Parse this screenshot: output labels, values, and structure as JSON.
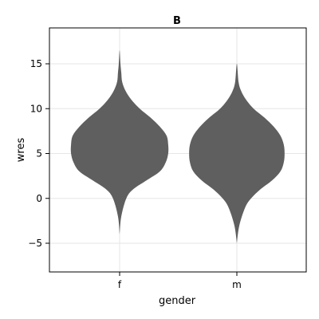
{
  "chart_data": {
    "type": "violin",
    "title": "B",
    "xlabel": "gender",
    "ylabel": "wres",
    "categories": [
      "f",
      "m"
    ],
    "ylim": [
      -8.2,
      19.0
    ],
    "yticks": [
      -5,
      0,
      5,
      10,
      15
    ],
    "ytick_labels": [
      "−5",
      "0",
      "5",
      "10",
      "15"
    ],
    "grid": true,
    "fill_color": "#5a5a5a",
    "violins": [
      {
        "category": "f",
        "min": -4.0,
        "max": 16.5,
        "density": [
          [
            -4.0,
            0.0
          ],
          [
            -2.0,
            0.02
          ],
          [
            0.0,
            0.08
          ],
          [
            1.0,
            0.16
          ],
          [
            2.0,
            0.32
          ],
          [
            3.0,
            0.48
          ],
          [
            4.0,
            0.55
          ],
          [
            5.0,
            0.58
          ],
          [
            6.0,
            0.58
          ],
          [
            7.0,
            0.56
          ],
          [
            8.0,
            0.48
          ],
          [
            9.0,
            0.37
          ],
          [
            10.0,
            0.24
          ],
          [
            11.0,
            0.14
          ],
          [
            12.0,
            0.07
          ],
          [
            13.0,
            0.03
          ],
          [
            14.0,
            0.02
          ],
          [
            15.0,
            0.01
          ],
          [
            16.5,
            0.0
          ]
        ]
      },
      {
        "category": "m",
        "min": -5.0,
        "max": 15.0,
        "density": [
          [
            -5.0,
            0.0
          ],
          [
            -3.0,
            0.03
          ],
          [
            -1.0,
            0.1
          ],
          [
            0.0,
            0.17
          ],
          [
            1.0,
            0.28
          ],
          [
            2.0,
            0.42
          ],
          [
            3.0,
            0.52
          ],
          [
            4.0,
            0.56
          ],
          [
            5.0,
            0.57
          ],
          [
            6.0,
            0.56
          ],
          [
            7.0,
            0.52
          ],
          [
            8.0,
            0.44
          ],
          [
            9.0,
            0.33
          ],
          [
            10.0,
            0.2
          ],
          [
            11.0,
            0.11
          ],
          [
            12.0,
            0.05
          ],
          [
            13.0,
            0.02
          ],
          [
            15.0,
            0.0
          ]
        ]
      }
    ]
  }
}
